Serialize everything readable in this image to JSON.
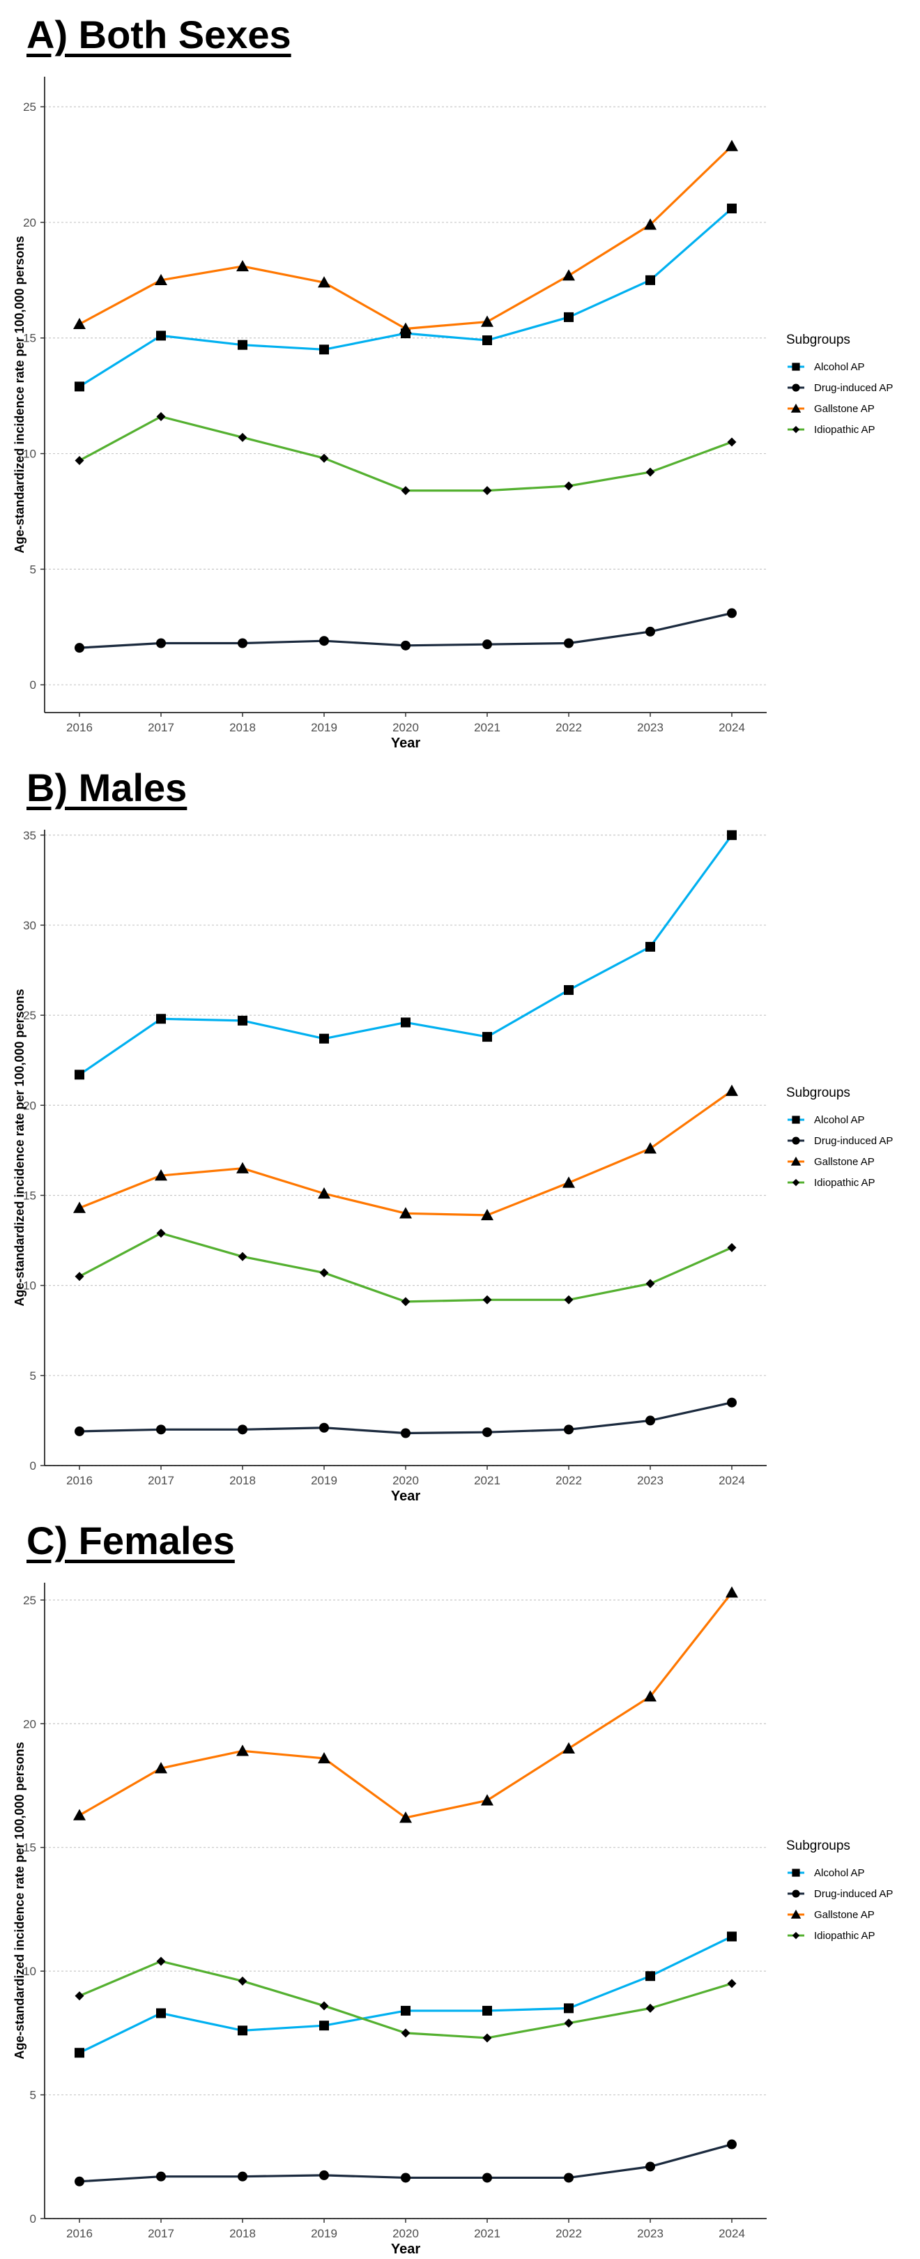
{
  "chart_data": [
    {
      "type": "line",
      "title": "A) Both Sexes",
      "xlabel": "Year",
      "ylabel": "Age-standardized incidence rate per 100,000 persons",
      "x": [
        2016,
        2017,
        2018,
        2019,
        2020,
        2021,
        2022,
        2023,
        2024
      ],
      "x_tick_labels": [
        "2016",
        "2017",
        "2018",
        "2019",
        "2020",
        "2021",
        "2022",
        "2023",
        "2024"
      ],
      "ylim": [
        -1.2,
        26.3
      ],
      "yticks": [
        0,
        5,
        10,
        15,
        20,
        25
      ],
      "y_tick_labels": [
        "0",
        "5",
        "10",
        "15",
        "20",
        "25"
      ],
      "grid": "horizontal dashed",
      "legend_title": "Subgroups",
      "legend_position": "right",
      "series": [
        {
          "name": "Alcohol AP",
          "color": "#00b0f0",
          "marker": "square",
          "values": [
            12.9,
            15.1,
            14.7,
            14.5,
            15.2,
            14.9,
            15.9,
            17.5,
            20.6
          ]
        },
        {
          "name": "Drug-induced AP",
          "color": "#1b2a3e",
          "marker": "circle",
          "values": [
            1.6,
            1.8,
            1.8,
            1.9,
            1.7,
            1.75,
            1.8,
            2.3,
            3.1
          ]
        },
        {
          "name": "Gallstone AP",
          "color": "#ff7700",
          "marker": "triangle",
          "values": [
            15.6,
            17.5,
            18.1,
            17.4,
            15.4,
            15.7,
            17.7,
            19.9,
            23.3
          ]
        },
        {
          "name": "Idiopathic AP",
          "color": "#54b030",
          "marker": "diamond",
          "values": [
            9.7,
            11.6,
            10.7,
            9.8,
            8.4,
            8.4,
            8.6,
            9.2,
            10.5
          ]
        }
      ]
    },
    {
      "type": "line",
      "title": "B) Males",
      "xlabel": "Year",
      "ylabel": "Age-standardized incidence rate per 100,000 persons",
      "x": [
        2016,
        2017,
        2018,
        2019,
        2020,
        2021,
        2022,
        2023,
        2024
      ],
      "x_tick_labels": [
        "2016",
        "2017",
        "2018",
        "2019",
        "2020",
        "2021",
        "2022",
        "2023",
        "2024"
      ],
      "ylim": [
        0,
        35.3
      ],
      "yticks": [
        0,
        5,
        10,
        15,
        20,
        25,
        30,
        35
      ],
      "y_tick_labels": [
        "0",
        "5",
        "10",
        "15",
        "20",
        "25",
        "30",
        "35"
      ],
      "grid": "horizontal dashed",
      "legend_title": "Subgroups",
      "legend_position": "right",
      "series": [
        {
          "name": "Alcohol AP",
          "color": "#00b0f0",
          "marker": "square",
          "values": [
            21.7,
            24.8,
            24.7,
            23.7,
            24.6,
            23.8,
            26.4,
            28.8,
            35.0
          ]
        },
        {
          "name": "Drug-induced AP",
          "color": "#1b2a3e",
          "marker": "circle",
          "values": [
            1.9,
            2.0,
            2.0,
            2.1,
            1.8,
            1.85,
            2.0,
            2.5,
            3.5
          ]
        },
        {
          "name": "Gallstone AP",
          "color": "#ff7700",
          "marker": "triangle",
          "values": [
            14.3,
            16.1,
            16.5,
            15.1,
            14.0,
            13.9,
            15.7,
            17.6,
            20.8
          ]
        },
        {
          "name": "Idiopathic AP",
          "color": "#54b030",
          "marker": "diamond",
          "values": [
            10.5,
            12.9,
            11.6,
            10.7,
            9.1,
            9.2,
            9.2,
            10.1,
            12.1
          ]
        }
      ]
    },
    {
      "type": "line",
      "title": "C) Females",
      "xlabel": "Year",
      "ylabel": "Age-standardized incidence rate per 100,000 persons",
      "x": [
        2016,
        2017,
        2018,
        2019,
        2020,
        2021,
        2022,
        2023,
        2024
      ],
      "x_tick_labels": [
        "2016",
        "2017",
        "2018",
        "2019",
        "2020",
        "2021",
        "2022",
        "2023",
        "2024"
      ],
      "ylim": [
        0,
        25.7
      ],
      "yticks": [
        0,
        5,
        10,
        15,
        20,
        25
      ],
      "y_tick_labels": [
        "0",
        "5",
        "10",
        "15",
        "20",
        "25"
      ],
      "grid": "horizontal dashed",
      "legend_title": "Subgroups",
      "legend_position": "right",
      "series": [
        {
          "name": "Alcohol AP",
          "color": "#00b0f0",
          "marker": "square",
          "values": [
            6.7,
            8.3,
            7.6,
            7.8,
            8.4,
            8.4,
            8.5,
            9.8,
            11.4
          ]
        },
        {
          "name": "Drug-induced AP",
          "color": "#1b2a3e",
          "marker": "circle",
          "values": [
            1.5,
            1.7,
            1.7,
            1.75,
            1.65,
            1.65,
            1.65,
            2.1,
            3.0
          ]
        },
        {
          "name": "Gallstone AP",
          "color": "#ff7700",
          "marker": "triangle",
          "values": [
            16.3,
            18.2,
            18.9,
            18.6,
            16.2,
            16.9,
            19.0,
            21.1,
            25.3
          ]
        },
        {
          "name": "Idiopathic AP",
          "color": "#54b030",
          "marker": "diamond",
          "values": [
            9.0,
            10.4,
            9.6,
            8.6,
            7.5,
            7.3,
            7.9,
            8.5,
            9.5
          ]
        }
      ]
    }
  ]
}
